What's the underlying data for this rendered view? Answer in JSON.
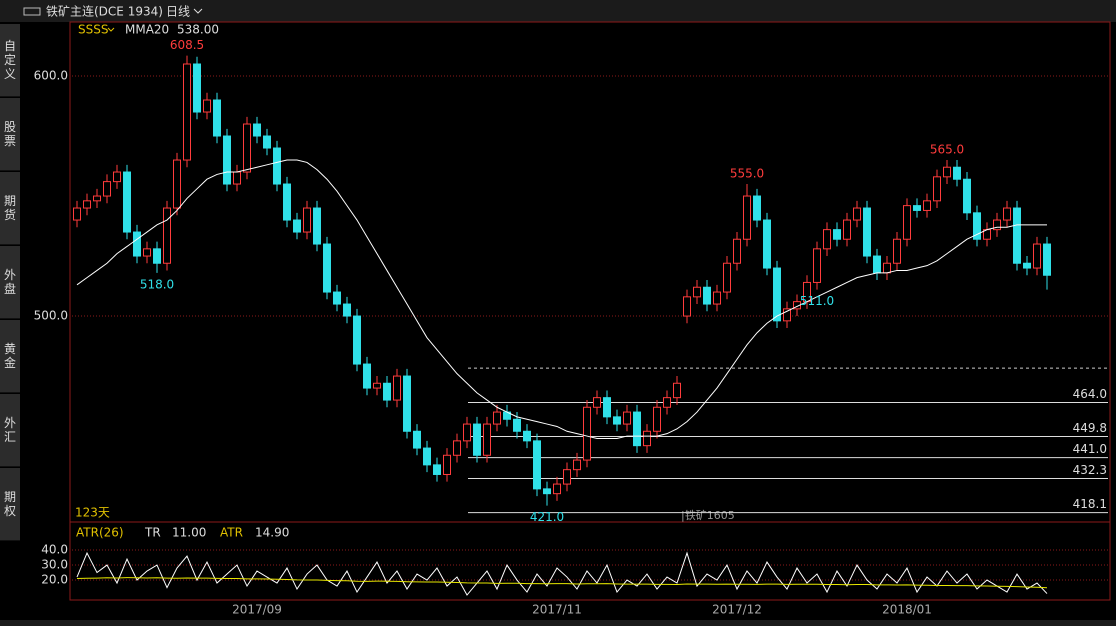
{
  "window": {
    "title": "铁矿主连(DCE 1934)",
    "period": "日线"
  },
  "sidebar": {
    "tabs": [
      "自定义",
      "股票",
      "期货",
      "外盘",
      "黄金",
      "外汇",
      "期权"
    ]
  },
  "chart_data": {
    "type": "candlestick",
    "indicator": "SSSS",
    "ma_name": "MMA20",
    "ma_readout": {
      "value": 538,
      "label": "538.00"
    },
    "categories": [
      null,
      null,
      null,
      null,
      null,
      null,
      null,
      null,
      null,
      null,
      null,
      null,
      null,
      null,
      null,
      null,
      null,
      null,
      "2017/09",
      null,
      null,
      null,
      null,
      null,
      null,
      null,
      null,
      null,
      null,
      null,
      null,
      null,
      null,
      null,
      null,
      null,
      null,
      null,
      null,
      null,
      null,
      null,
      null,
      null,
      null,
      null,
      null,
      null,
      "2017/11",
      null,
      null,
      null,
      null,
      null,
      null,
      null,
      null,
      null,
      null,
      null,
      null,
      null,
      null,
      null,
      null,
      null,
      "2017/12",
      null,
      null,
      null,
      null,
      null,
      null,
      null,
      null,
      null,
      null,
      null,
      null,
      null,
      null,
      null,
      null,
      "2018/01",
      null,
      null,
      null,
      null,
      null,
      null,
      null,
      null,
      null,
      null,
      null,
      null,
      null,
      null
    ],
    "open": [
      540,
      545,
      548,
      550,
      556,
      560,
      535,
      525,
      528,
      522,
      545,
      565,
      605,
      585,
      590,
      575,
      555,
      560,
      580,
      575,
      570,
      555,
      540,
      535,
      545,
      530,
      510,
      505,
      500,
      480,
      470,
      472,
      465,
      475,
      452,
      445,
      438,
      434,
      442,
      448,
      455,
      442,
      455,
      460,
      457,
      452,
      448,
      428,
      426,
      430,
      436,
      440,
      462,
      466,
      458,
      455,
      460,
      446,
      452,
      462,
      466,
      500,
      508,
      512,
      505,
      510,
      522,
      532,
      550,
      540,
      520,
      498,
      503,
      506,
      514,
      528,
      536,
      532,
      540,
      545,
      525,
      518,
      522,
      532,
      546,
      544,
      548,
      558,
      562,
      557,
      543,
      532,
      536,
      540,
      545,
      522,
      520,
      530
    ],
    "high": [
      548,
      551,
      553,
      559,
      563,
      563,
      538,
      531,
      531,
      548,
      568,
      608.5,
      608,
      593,
      593,
      578,
      563,
      583,
      583,
      578,
      573,
      558,
      543,
      548,
      548,
      533,
      513,
      508,
      503,
      483,
      475,
      475,
      478,
      478,
      455,
      448,
      441,
      445,
      451,
      458,
      458,
      458,
      463,
      463,
      460,
      455,
      451,
      431,
      433,
      439,
      443,
      465,
      469,
      469,
      461,
      463,
      463,
      455,
      465,
      469,
      475,
      511,
      515,
      515,
      513,
      525,
      535,
      555,
      553,
      543,
      523,
      506,
      509,
      517,
      531,
      539,
      539,
      543,
      548,
      548,
      528,
      525,
      535,
      549,
      549,
      551,
      561,
      565,
      565,
      560,
      546,
      539,
      543,
      548,
      548,
      525,
      533,
      533
    ],
    "low": [
      537,
      542,
      545,
      547,
      553,
      532,
      522,
      522,
      518,
      519,
      542,
      562,
      582,
      582,
      572,
      552,
      552,
      557,
      572,
      567,
      552,
      537,
      532,
      532,
      527,
      507,
      502,
      497,
      477,
      467,
      467,
      462,
      462,
      449,
      442,
      435,
      431,
      431,
      439,
      445,
      439,
      439,
      452,
      454,
      449,
      445,
      425,
      421,
      423,
      427,
      433,
      437,
      459,
      455,
      452,
      452,
      443,
      443,
      449,
      459,
      463,
      497,
      505,
      502,
      502,
      507,
      519,
      529,
      537,
      517,
      495,
      495,
      500,
      503,
      511,
      525,
      529,
      529,
      537,
      522,
      515,
      515,
      519,
      529,
      541,
      541,
      545,
      555,
      554,
      540,
      529,
      529,
      533,
      537,
      519,
      517,
      517,
      511
    ],
    "close": [
      545,
      548,
      550,
      556,
      560,
      535,
      525,
      528,
      522,
      545,
      565,
      605,
      585,
      590,
      575,
      555,
      560,
      580,
      575,
      570,
      555,
      540,
      535,
      545,
      530,
      510,
      505,
      500,
      480,
      470,
      472,
      465,
      475,
      452,
      445,
      438,
      434,
      442,
      448,
      455,
      442,
      455,
      460,
      457,
      452,
      448,
      428,
      426,
      430,
      436,
      440,
      462,
      466,
      458,
      455,
      460,
      446,
      452,
      462,
      466,
      472,
      508,
      512,
      505,
      510,
      522,
      532,
      550,
      540,
      520,
      498,
      503,
      506,
      514,
      528,
      536,
      532,
      540,
      545,
      525,
      518,
      522,
      532,
      546,
      544,
      548,
      558,
      562,
      557,
      543,
      532,
      536,
      540,
      545,
      522,
      520,
      530,
      517
    ],
    "ma20": [
      513,
      516,
      519,
      522,
      526,
      529,
      532,
      535,
      538,
      540,
      544,
      549,
      553,
      557,
      559,
      560,
      560,
      561,
      562,
      563,
      564,
      565,
      565,
      564,
      561,
      557,
      552,
      546,
      540,
      533,
      526,
      519,
      512,
      505,
      498,
      491,
      486,
      481,
      476,
      472,
      468,
      465,
      462,
      460,
      458,
      457,
      456,
      455,
      454,
      452,
      451,
      450,
      449,
      449,
      449,
      450,
      450,
      450,
      450,
      451,
      453,
      456,
      460,
      465,
      470,
      476,
      482,
      488,
      493,
      497,
      500,
      502,
      504,
      506,
      508,
      510,
      512,
      514,
      516,
      517,
      518,
      518,
      519,
      519,
      520,
      521,
      523,
      526,
      529,
      532,
      534,
      536,
      537,
      537,
      538,
      538,
      538,
      538
    ],
    "up_color": "#ff3c3c",
    "down_color": "#30e0e8",
    "ma_color": "#ffffff",
    "ylim": [
      414.2,
      622.5
    ],
    "yticks": [
      {
        "value": 600,
        "label": "600.0"
      },
      {
        "value": 500,
        "label": "500.0"
      }
    ],
    "grid": true,
    "high_annotations": [
      {
        "value": 608.5,
        "label": "608.5"
      },
      {
        "value": 555,
        "label": "555.0"
      },
      {
        "value": 565,
        "label": "565.0"
      }
    ],
    "low_annotations": [
      {
        "value": 518,
        "label": "518.0"
      },
      {
        "value": 421,
        "label": "421.0"
      },
      {
        "value": 511,
        "label": "511.0"
      }
    ],
    "levels": [
      {
        "value": 464,
        "label": "464.0"
      },
      {
        "value": 449.8,
        "label": "449.8"
      },
      {
        "value": 441,
        "label": "441.0"
      },
      {
        "value": 432.3,
        "label": "432.3"
      },
      {
        "value": 418.1,
        "label": "418.1"
      }
    ],
    "dashed_level": 478.3,
    "days_label": "123天",
    "contract_label": "|铁矿1605",
    "atr": {
      "type": "line",
      "title": "ATR(26)",
      "tr_name": "TR",
      "tr_readout": {
        "value": 11,
        "label": "11.00"
      },
      "atr_name": "ATR",
      "atr_readout": {
        "value": 14.9,
        "label": "14.90"
      },
      "tr": [
        22,
        38,
        25,
        30,
        18,
        34,
        20,
        26,
        30,
        15,
        28,
        36,
        20,
        32,
        18,
        24,
        30,
        16,
        26,
        22,
        18,
        28,
        14,
        24,
        30,
        20,
        16,
        26,
        12,
        22,
        32,
        18,
        26,
        14,
        24,
        20,
        28,
        16,
        22,
        10,
        18,
        26,
        14,
        30,
        20,
        12,
        24,
        16,
        28,
        22,
        14,
        26,
        18,
        30,
        12,
        20,
        16,
        24,
        14,
        22,
        18,
        38,
        16,
        24,
        20,
        30,
        14,
        26,
        18,
        32,
        22,
        14,
        28,
        18,
        24,
        12,
        26,
        16,
        30,
        20,
        14,
        24,
        18,
        28,
        12,
        22,
        16,
        26,
        18,
        24,
        14,
        20,
        16,
        12,
        24,
        14,
        18,
        11
      ],
      "atr": [
        21,
        21.2,
        21.3,
        21.5,
        21.4,
        21.6,
        21.5,
        21.4,
        21.5,
        21.3,
        21.2,
        21.4,
        21.3,
        21.3,
        21.1,
        21,
        21,
        20.8,
        20.8,
        20.7,
        20.5,
        20.4,
        20.1,
        20,
        20,
        19.8,
        19.6,
        19.5,
        19.2,
        19.1,
        19.3,
        19.2,
        19.1,
        18.9,
        18.8,
        18.7,
        18.7,
        18.5,
        18.4,
        18.1,
        18,
        18,
        17.8,
        17.9,
        17.9,
        17.6,
        17.6,
        17.5,
        17.6,
        17.6,
        17.4,
        17.5,
        17.5,
        17.6,
        17.4,
        17.3,
        17.3,
        17.3,
        17.1,
        17.1,
        17,
        17.4,
        17.3,
        17.3,
        17.2,
        17.3,
        17.2,
        17.2,
        17.1,
        17.3,
        17.3,
        17.1,
        17.2,
        17.2,
        17.2,
        17,
        17,
        16.9,
        17,
        17,
        16.8,
        16.8,
        16.7,
        16.8,
        16.6,
        16.5,
        16.4,
        16.4,
        16.3,
        16.3,
        16.1,
        16,
        15.9,
        15.8,
        15.6,
        15.4,
        15.2,
        14.9
      ],
      "tr_color": "#ffffff",
      "atr_color": "#e8e800",
      "ylim": [
        6.7,
        58.7
      ],
      "yticks": [
        {
          "value": 40,
          "label": "40.0"
        },
        {
          "value": 30,
          "label": "30.0"
        },
        {
          "value": 20,
          "label": "20.0"
        }
      ],
      "grid": true
    }
  }
}
